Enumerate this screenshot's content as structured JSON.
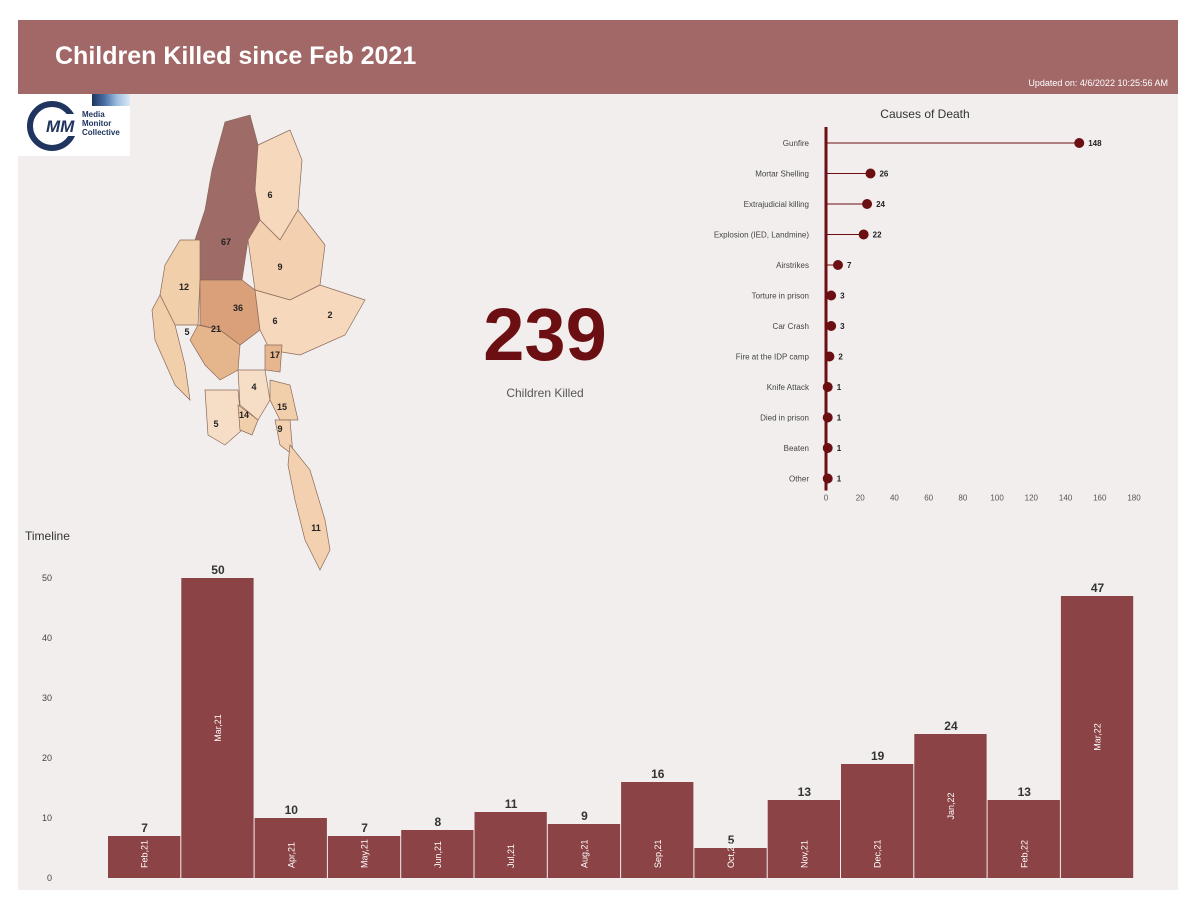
{
  "header": {
    "title": "Children Killed since Feb 2021",
    "updated": "Updated on: 4/6/2022 10:25:56 AM"
  },
  "logo": {
    "text": "Media Monitor Collective",
    "mark": "MM"
  },
  "kpi": {
    "value": "239",
    "label": "Children Killed"
  },
  "colors": {
    "header": "#a26868",
    "bar": "#8b4346",
    "lollipop": "#6b0f12",
    "background": "#f3eeee"
  },
  "map": {
    "region_values": [
      "67",
      "6",
      "9",
      "12",
      "36",
      "6",
      "2",
      "5",
      "21",
      "17",
      "4",
      "14",
      "15",
      "5",
      "9",
      "11"
    ]
  },
  "chart_data": [
    {
      "type": "bar",
      "title": "Timeline",
      "categories": [
        "Feb,21",
        "Mar,21",
        "Apr,21",
        "May,21",
        "Jun,21",
        "Jul,21",
        "Aug,21",
        "Sep,21",
        "Oct,21",
        "Nov,21",
        "Dec,21",
        "Jan,22",
        "Feb,22",
        "Mar,22"
      ],
      "values": [
        7,
        50,
        10,
        7,
        8,
        11,
        9,
        16,
        5,
        13,
        19,
        24,
        13,
        47
      ],
      "ylim": [
        0,
        50
      ],
      "yticks": [
        0,
        10,
        20,
        30,
        40,
        50
      ],
      "grid": false
    },
    {
      "type": "lollipop",
      "title": "Causes of Death",
      "categories": [
        "Gunfire",
        "Mortar Shelling",
        "Extrajudicial killing",
        "Explosion (IED, Landmine)",
        "Airstrikes",
        "Torture in prison",
        "Car Crash",
        "Fire at the IDP camp",
        "Knife Attack",
        "Died in prison",
        "Beaten",
        "Other"
      ],
      "values": [
        148,
        26,
        24,
        22,
        7,
        3,
        3,
        2,
        1,
        1,
        1,
        1
      ],
      "xlim": [
        0,
        180
      ],
      "xticks": [
        0,
        20,
        40,
        60,
        80,
        100,
        120,
        140,
        160,
        180
      ],
      "grid": false
    }
  ]
}
